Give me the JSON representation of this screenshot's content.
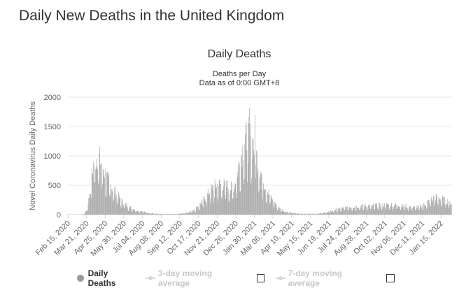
{
  "page": {
    "title": "Daily New Deaths in the United Kingdom"
  },
  "colors": {
    "bar": "#a6a6a6",
    "grid": "#e6e6e6",
    "axis": "#ccd6eb",
    "inactive": "#cccccc"
  },
  "legend": {
    "daily_label": "Daily Deaths",
    "avg3_label": "3-day moving average",
    "avg7_label": "7-day moving average"
  },
  "chart_data": {
    "type": "bar",
    "title": "Daily Deaths",
    "subtitle_line1": "Deaths per Day",
    "subtitle_line2": "Data as of 0:00 GMT+8",
    "ylabel": "Novel Coronavirus Daily Deaths",
    "xlabel": "",
    "ylim": [
      0,
      2000
    ],
    "yticks": [
      0,
      500,
      1000,
      1500,
      2000
    ],
    "xrange": [
      "2020-02-15",
      "2022-02-05"
    ],
    "xticks": [
      "Feb 15, 2020",
      "Mar 21, 2020",
      "Apr 25, 2020",
      "May 30, 2020",
      "Jul 04, 2020",
      "Aug 08, 2020",
      "Sep 12, 2020",
      "Oct 17, 2020",
      "Nov 21, 2020",
      "Dec 26, 2020",
      "Jan 30, 2021",
      "Mar 06, 2021",
      "Apr 10, 2021",
      "May 15, 2021",
      "Jun 19, 2021",
      "Jul 24, 2021",
      "Aug 28, 2021",
      "Oct 02, 2021",
      "Nov 06, 2021",
      "Dec 11, 2021",
      "Jan 15, 2022"
    ],
    "series": [
      {
        "name": "Daily Deaths",
        "start_date": "2020-02-15",
        "interval_days": 1,
        "keypoints": [
          [
            0,
            0
          ],
          [
            25,
            2
          ],
          [
            32,
            20
          ],
          [
            36,
            100
          ],
          [
            40,
            300
          ],
          [
            44,
            600
          ],
          [
            48,
            850
          ],
          [
            52,
            950
          ],
          [
            56,
            1000
          ],
          [
            60,
            950
          ],
          [
            66,
            800
          ],
          [
            72,
            650
          ],
          [
            80,
            500
          ],
          [
            88,
            400
          ],
          [
            96,
            300
          ],
          [
            104,
            200
          ],
          [
            112,
            150
          ],
          [
            122,
            100
          ],
          [
            132,
            70
          ],
          [
            142,
            50
          ],
          [
            152,
            30
          ],
          [
            165,
            15
          ],
          [
            180,
            10
          ],
          [
            200,
            10
          ],
          [
            215,
            20
          ],
          [
            225,
            40
          ],
          [
            235,
            70
          ],
          [
            245,
            150
          ],
          [
            255,
            250
          ],
          [
            262,
            350
          ],
          [
            270,
            450
          ],
          [
            278,
            500
          ],
          [
            285,
            520
          ],
          [
            292,
            510
          ],
          [
            300,
            480
          ],
          [
            306,
            450
          ],
          [
            312,
            500
          ],
          [
            316,
            600
          ],
          [
            320,
            800
          ],
          [
            325,
            1000
          ],
          [
            330,
            1200
          ],
          [
            335,
            1300
          ],
          [
            338,
            1350
          ],
          [
            342,
            1300
          ],
          [
            348,
            1200
          ],
          [
            354,
            1000
          ],
          [
            360,
            800
          ],
          [
            366,
            600
          ],
          [
            372,
            450
          ],
          [
            378,
            350
          ],
          [
            385,
            250
          ],
          [
            392,
            150
          ],
          [
            400,
            90
          ],
          [
            410,
            50
          ],
          [
            420,
            30
          ],
          [
            430,
            20
          ],
          [
            445,
            15
          ],
          [
            465,
            15
          ],
          [
            480,
            30
          ],
          [
            490,
            50
          ],
          [
            500,
            80
          ],
          [
            510,
            100
          ],
          [
            520,
            120
          ],
          [
            530,
            130
          ],
          [
            540,
            140
          ],
          [
            560,
            150
          ],
          [
            580,
            160
          ],
          [
            600,
            170
          ],
          [
            615,
            175
          ],
          [
            630,
            150
          ],
          [
            650,
            130
          ],
          [
            660,
            140
          ],
          [
            670,
            170
          ],
          [
            680,
            250
          ],
          [
            690,
            300
          ],
          [
            700,
            280
          ],
          [
            720,
            200
          ]
        ],
        "noise_pct": 0.25,
        "peaks": [
          [
            60,
            1160
          ],
          [
            341,
            1820
          ],
          [
            351,
            1700
          ]
        ]
      }
    ]
  }
}
